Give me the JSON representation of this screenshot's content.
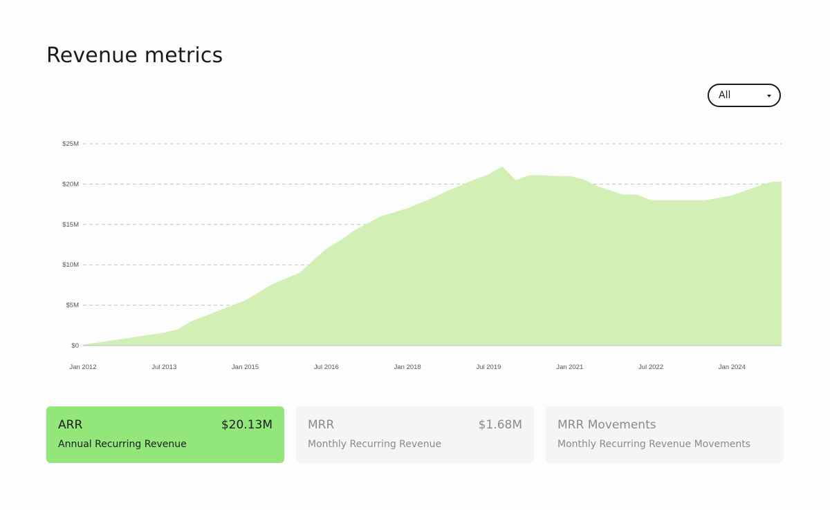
{
  "page": {
    "title": "Revenue metrics"
  },
  "filter": {
    "selected": "All",
    "icon": "chevron-down-icon"
  },
  "chart_data": {
    "type": "area",
    "title": "",
    "xlabel": "",
    "ylabel": "",
    "x_ticks": [
      "Jan 2012",
      "Jul 2013",
      "Jan 2015",
      "Jul 2016",
      "Jan 2018",
      "Jul 2019",
      "Jan 2021",
      "Jul 2022",
      "Jan 2024"
    ],
    "y_ticks": [
      "$0",
      "$5M",
      "$10M",
      "$15M",
      "$20M",
      "$25M"
    ],
    "ylim": [
      0,
      25
    ],
    "y_unit": "$M",
    "grid": "horizontal dashed",
    "fill_color": "#d2f0b5",
    "series": [
      {
        "x": [
          "2012-01",
          "2012-07",
          "2013-01",
          "2013-07",
          "2013-10",
          "2014-01",
          "2014-07",
          "2015-01",
          "2015-07",
          "2016-01",
          "2016-07",
          "2016-10",
          "2017-01",
          "2017-07",
          "2018-01",
          "2018-07",
          "2018-10",
          "2019-01",
          "2019-04",
          "2019-07",
          "2019-10",
          "2020-01",
          "2020-04",
          "2020-07",
          "2020-10",
          "2021-01",
          "2021-04",
          "2021-07",
          "2021-10",
          "2022-01",
          "2022-04",
          "2022-07",
          "2022-10",
          "2023-01",
          "2023-04",
          "2023-07",
          "2023-10",
          "2024-01",
          "2024-04",
          "2024-07",
          "2024-10",
          "2024-12"
        ],
        "y": [
          0.1,
          0.6,
          1.1,
          1.6,
          2.0,
          3.0,
          4.3,
          5.6,
          7.6,
          9.0,
          12.0,
          13.0,
          14.2,
          16.0,
          17.0,
          18.4,
          19.2,
          19.9,
          20.6,
          21.2,
          22.2,
          20.5,
          21.1,
          21.1,
          21.0,
          21.0,
          20.6,
          19.8,
          19.2,
          18.7,
          18.7,
          18.0,
          18.0,
          18.0,
          18.0,
          18.0,
          18.3,
          18.6,
          19.2,
          19.8,
          20.3,
          20.3
        ]
      }
    ]
  },
  "metrics": [
    {
      "key": "ARR",
      "value": "$20.13M",
      "description": "Annual Recurring Revenue"
    },
    {
      "key": "MRR",
      "value": "$1.68M",
      "description": "Monthly Recurring Revenue"
    },
    {
      "key": "MRR Movements",
      "value": "",
      "description": "Monthly Recurring Revenue Movements"
    }
  ]
}
